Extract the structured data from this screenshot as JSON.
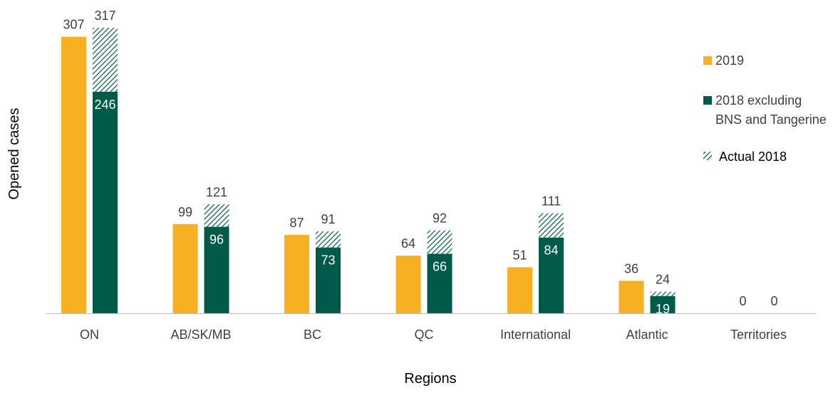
{
  "chart_data": {
    "type": "bar",
    "title": "",
    "xlabel": "Regions",
    "ylabel": "Opened cases",
    "categories": [
      "ON",
      "AB/SK/MB",
      "BC",
      "QC",
      "International",
      "Atlantic",
      "Territories"
    ],
    "series": [
      {
        "name": "2019",
        "values": [
          307,
          99,
          87,
          64,
          51,
          36,
          0
        ],
        "color": "#f6b021"
      },
      {
        "name": "2018 excluding BNS and Tangerine",
        "values": [
          246,
          96,
          73,
          66,
          84,
          19,
          0
        ],
        "color": "#005a4a"
      },
      {
        "name": "Actual 2018",
        "values": [
          317,
          121,
          91,
          92,
          111,
          24,
          0
        ],
        "color": "#005a4a",
        "pattern": "hatched",
        "stacked_on": "2018 excluding BNS and Tangerine"
      }
    ],
    "ylim": [
      0,
      320
    ],
    "grid": false,
    "legend_position": "right",
    "legend": [
      {
        "label": "2019",
        "swatch": "solid-orange"
      },
      {
        "label": "2018 excluding",
        "label_line2": "BNS and Tangerine",
        "swatch": "solid-green"
      },
      {
        "label": "Actual 2018",
        "swatch": "hatched-green"
      }
    ]
  }
}
